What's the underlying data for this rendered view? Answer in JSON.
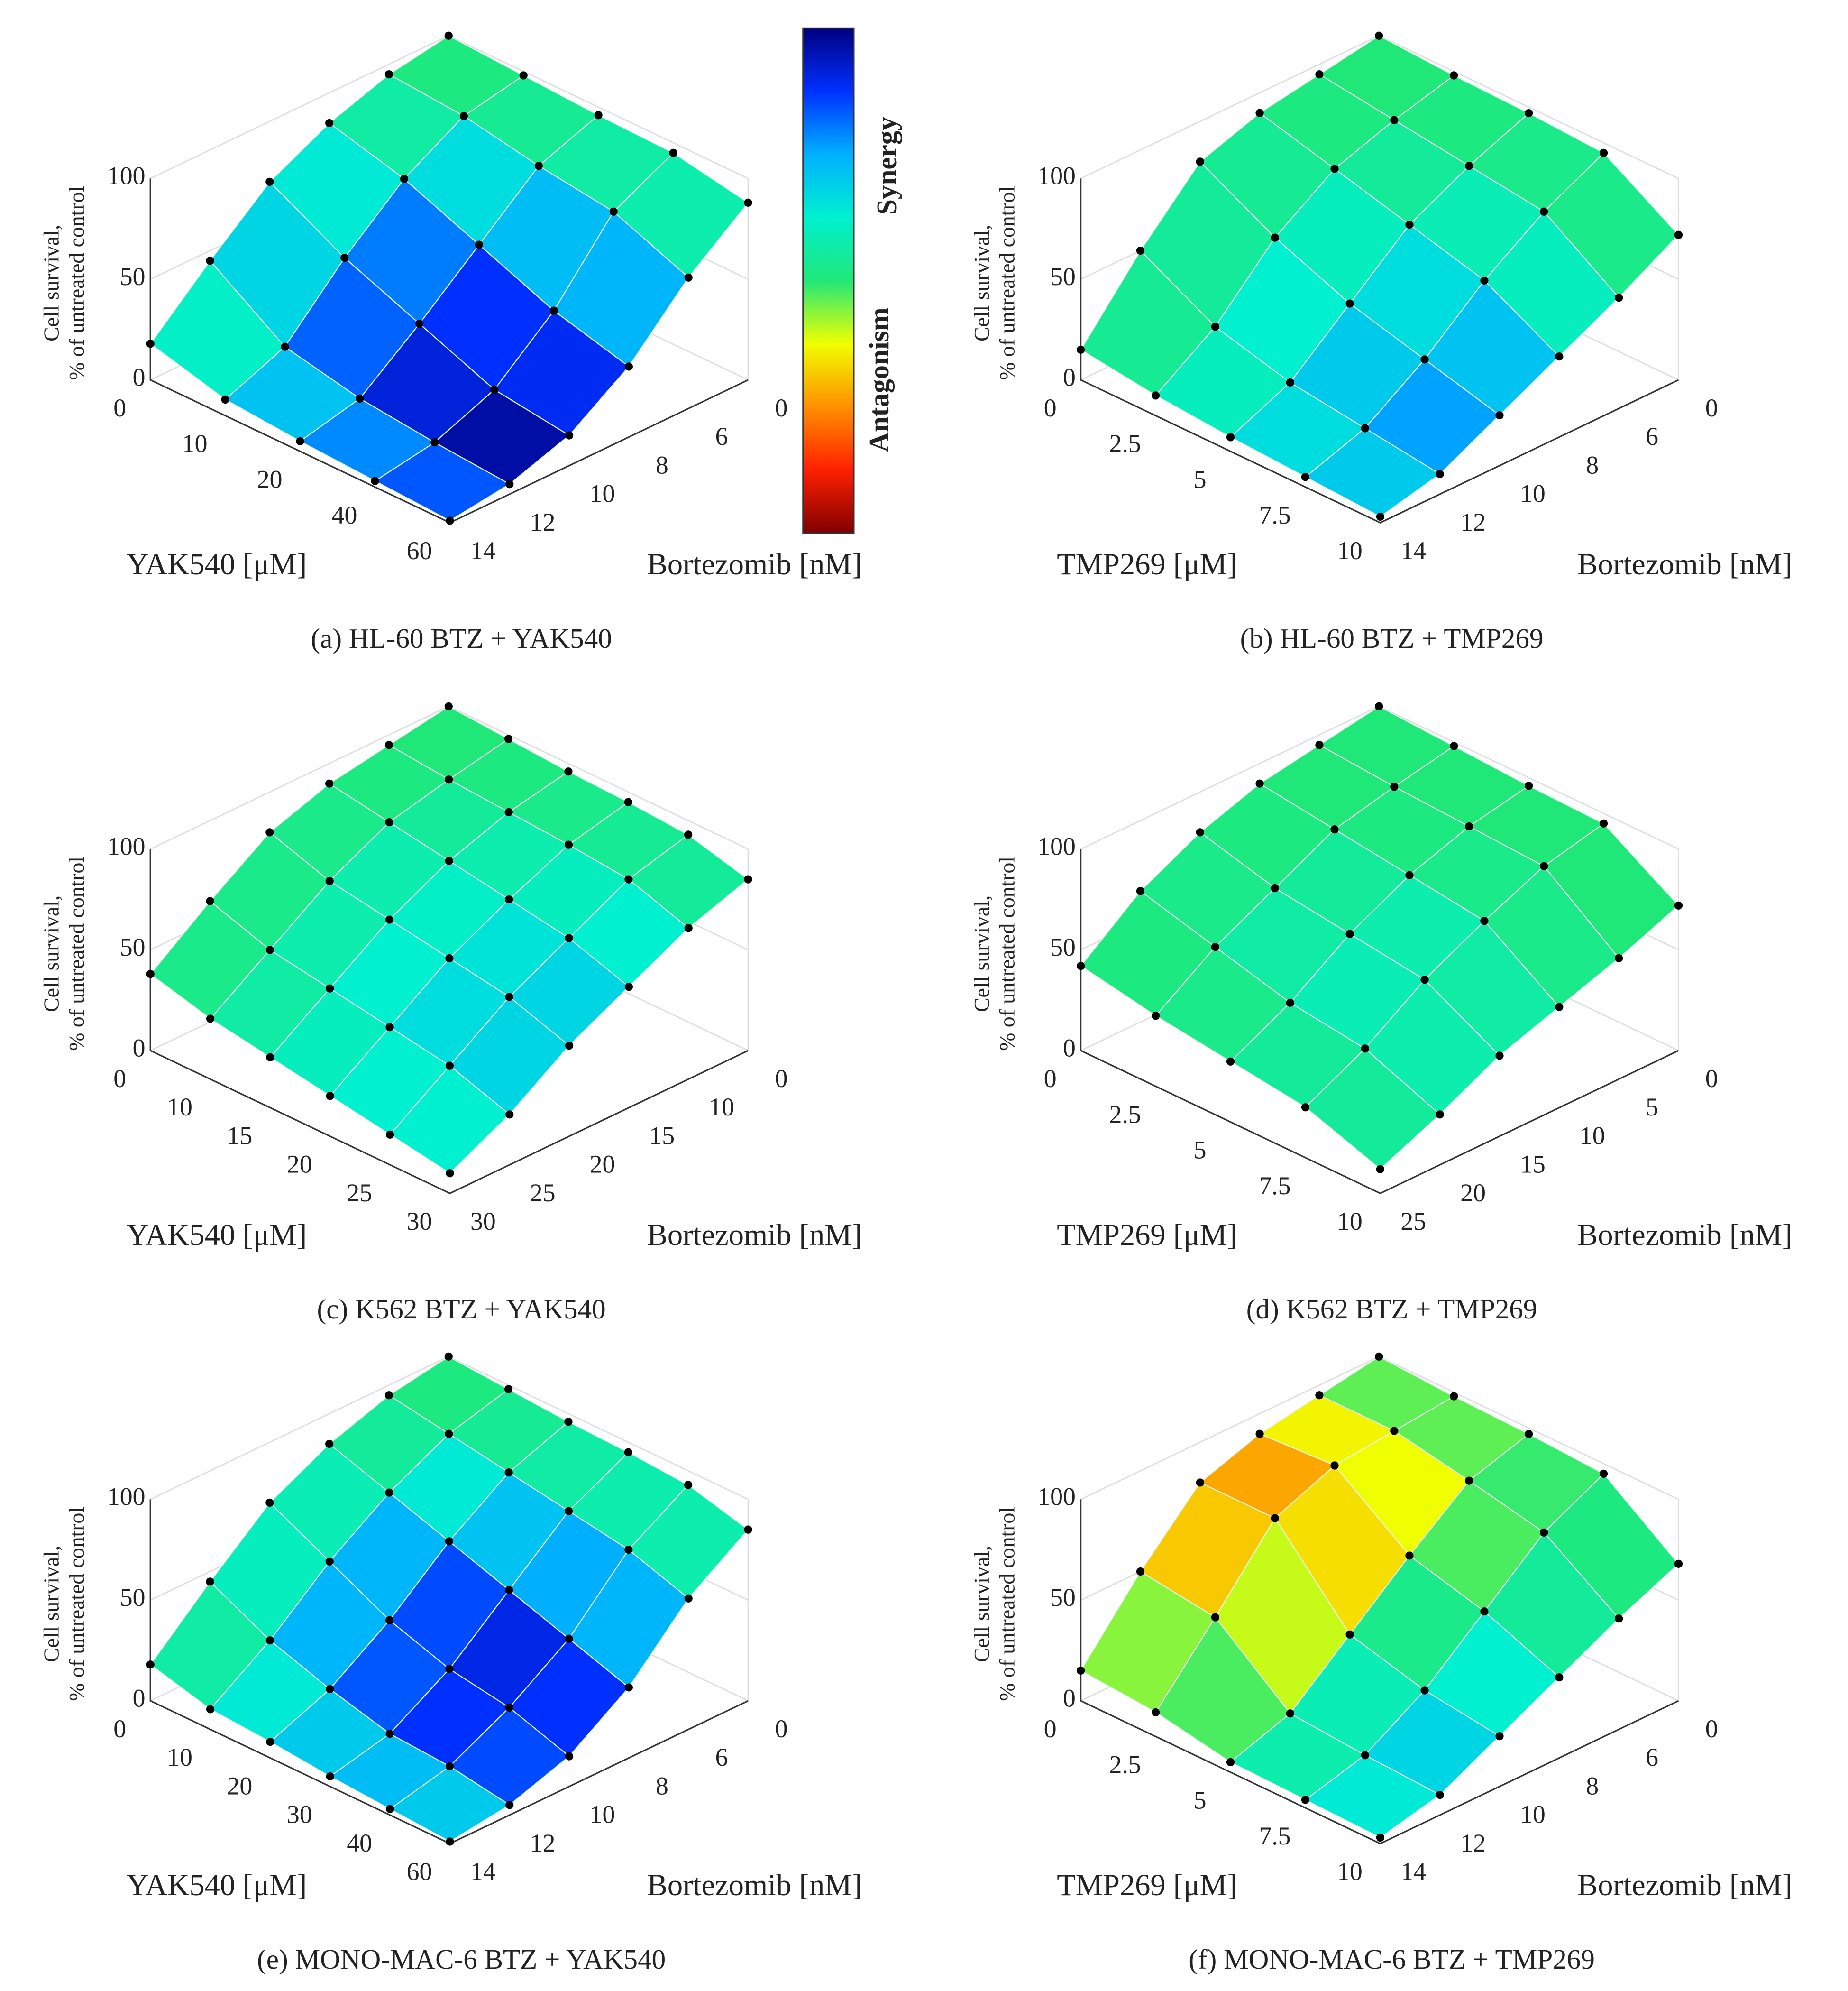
{
  "chart_data": [
    {
      "type": "surface3d",
      "caption": "(a) HL-60 BTZ + YAK540",
      "xlabel": "YAK540 [μM]",
      "ylabel": "Bortezomib [nM]",
      "zlabel": [
        "Cell survival,",
        "% of untreated control"
      ],
      "x_categories": [
        0,
        10,
        20,
        40,
        60
      ],
      "y_categories": [
        0,
        6,
        8,
        10,
        12,
        14
      ],
      "zlim": [
        0,
        100
      ],
      "zticks": [
        0,
        50,
        100
      ],
      "values": [
        [
          100,
          95,
          85,
          70,
          45,
          18
        ],
        [
          98,
          92,
          75,
          50,
          20,
          8
        ],
        [
          96,
          85,
          60,
          35,
          12,
          5
        ],
        [
          95,
          80,
          45,
          20,
          8,
          3
        ],
        [
          88,
          65,
          35,
          15,
          5,
          1
        ]
      ],
      "synergy": [
        [
          0,
          0,
          0,
          0.1,
          0.2,
          0
        ],
        [
          0,
          0.1,
          0.4,
          0.6,
          0.5,
          0.2
        ],
        [
          0,
          0.2,
          0.6,
          0.8,
          0.7,
          0.3
        ],
        [
          0,
          0.3,
          0.7,
          0.9,
          0.9,
          0.4
        ],
        [
          0,
          0.3,
          0.6,
          0.9,
          1,
          0.4
        ]
      ]
    },
    {
      "type": "surface3d",
      "caption": "(b) HL-60 BTZ + TMP269",
      "xlabel": "TMP269 [μM]",
      "ylabel": "Bortezomib [nM]",
      "zlabel": [
        "Cell survival,",
        "% of untreated control"
      ],
      "x_categories": [
        0,
        2.5,
        5,
        7.5,
        10
      ],
      "y_categories": [
        0,
        6,
        8,
        10,
        12,
        14
      ],
      "zlim": [
        0,
        100
      ],
      "zticks": [
        0,
        50,
        100
      ],
      "values": [
        [
          100,
          95,
          90,
          80,
          50,
          15
        ],
        [
          98,
          90,
          80,
          60,
          30,
          10
        ],
        [
          97,
          85,
          70,
          45,
          20,
          7
        ],
        [
          95,
          80,
          60,
          35,
          15,
          5
        ],
        [
          72,
          55,
          40,
          25,
          10,
          3
        ]
      ],
      "synergy": [
        [
          0,
          0,
          0,
          0,
          0,
          0
        ],
        [
          0,
          0,
          0.1,
          0.2,
          0.2,
          0.1
        ],
        [
          0,
          0.1,
          0.2,
          0.3,
          0.3,
          0.2
        ],
        [
          0,
          0.1,
          0.3,
          0.5,
          0.5,
          0.3
        ],
        [
          0,
          0.1,
          0.3,
          0.6,
          0.5,
          0.3
        ]
      ]
    },
    {
      "type": "surface3d",
      "caption": "(c) K562 BTZ + YAK540",
      "xlabel": "YAK540 [μM]",
      "ylabel": "Bortezomib [nM]",
      "zlabel": [
        "Cell survival,",
        "% of untreated control"
      ],
      "x_categories": [
        0,
        10,
        15,
        20,
        25,
        30
      ],
      "y_categories": [
        0,
        10,
        15,
        20,
        25,
        30
      ],
      "zlim": [
        0,
        100
      ],
      "zticks": [
        0,
        50,
        100
      ],
      "values": [
        [
          100,
          95,
          90,
          80,
          60,
          38
        ],
        [
          98,
          92,
          85,
          70,
          50,
          30
        ],
        [
          96,
          90,
          80,
          65,
          45,
          25
        ],
        [
          95,
          88,
          75,
          60,
          40,
          20
        ],
        [
          93,
          85,
          70,
          55,
          35,
          15
        ],
        [
          85,
          75,
          60,
          45,
          25,
          10
        ]
      ],
      "synergy": [
        [
          0,
          0,
          0,
          0,
          0,
          0
        ],
        [
          0,
          0,
          0.1,
          0.1,
          0.1,
          0.1
        ],
        [
          0,
          0.1,
          0.2,
          0.2,
          0.2,
          0.1
        ],
        [
          0,
          0.1,
          0.2,
          0.3,
          0.3,
          0.2
        ],
        [
          0,
          0.2,
          0.3,
          0.4,
          0.3,
          0.2
        ],
        [
          0,
          0.2,
          0.3,
          0.4,
          0.3,
          0.2
        ]
      ]
    },
    {
      "type": "surface3d",
      "caption": "(d) K562 BTZ + TMP269",
      "xlabel": "TMP269 [μM]",
      "ylabel": "Bortezomib [nM]",
      "zlabel": [
        "Cell survival,",
        "% of untreated control"
      ],
      "x_categories": [
        0,
        2.5,
        5,
        7.5,
        10
      ],
      "y_categories": [
        0,
        5,
        10,
        15,
        20,
        25
      ],
      "zlim": [
        0,
        100
      ],
      "zticks": [
        0,
        50,
        100
      ],
      "values": [
        [
          100,
          95,
          90,
          80,
          65,
          42
        ],
        [
          98,
          92,
          85,
          70,
          55,
          35
        ],
        [
          96,
          90,
          80,
          65,
          45,
          30
        ],
        [
          95,
          88,
          75,
          60,
          40,
          25
        ],
        [
          72,
          60,
          50,
          40,
          25,
          12
        ]
      ],
      "synergy": [
        [
          0,
          0,
          0,
          0,
          0,
          0
        ],
        [
          0,
          0,
          0,
          0.1,
          0.1,
          0
        ],
        [
          0,
          0,
          0.1,
          0.2,
          0.1,
          0
        ],
        [
          0,
          0,
          0.1,
          0.2,
          0.2,
          0.1
        ],
        [
          0,
          0,
          0.1,
          0.1,
          0.1,
          0
        ]
      ]
    },
    {
      "type": "surface3d",
      "caption": "(e) MONO-MAC-6 BTZ + YAK540",
      "xlabel": "YAK540 [μM]",
      "ylabel": "Bortezomib [nM]",
      "zlabel": [
        "Cell survival,",
        "% of untreated control"
      ],
      "x_categories": [
        0,
        10,
        20,
        30,
        40,
        60
      ],
      "y_categories": [
        0,
        6,
        8,
        10,
        12,
        14
      ],
      "zlim": [
        0,
        100
      ],
      "zticks": [
        0,
        50,
        100
      ],
      "values": [
        [
          100,
          95,
          85,
          70,
          45,
          18
        ],
        [
          98,
          90,
          75,
          55,
          30,
          10
        ],
        [
          96,
          85,
          65,
          40,
          20,
          8
        ],
        [
          95,
          80,
          55,
          30,
          12,
          5
        ],
        [
          93,
          75,
          45,
          25,
          10,
          3
        ],
        [
          85,
          65,
          35,
          15,
          5,
          1
        ]
      ],
      "synergy": [
        [
          0,
          0,
          0,
          0,
          0.1,
          0
        ],
        [
          0,
          0.1,
          0.3,
          0.4,
          0.3,
          0.1
        ],
        [
          0,
          0.2,
          0.5,
          0.7,
          0.5,
          0.2
        ],
        [
          0,
          0.3,
          0.7,
          0.9,
          0.6,
          0.3
        ],
        [
          0,
          0.3,
          0.7,
          0.9,
          0.6,
          0.3
        ],
        [
          0,
          0.3,
          0.6,
          0.8,
          0.5,
          0.2
        ]
      ]
    },
    {
      "type": "surface3d",
      "caption": "(f) MONO-MAC-6 BTZ + TMP269",
      "xlabel": "TMP269 [μM]",
      "ylabel": "Bortezomib [nM]",
      "zlabel": [
        "Cell survival,",
        "% of untreated control"
      ],
      "x_categories": [
        0,
        2.5,
        5,
        7.5,
        10
      ],
      "y_categories": [
        0,
        6,
        8,
        10,
        12,
        14
      ],
      "zlim": [
        0,
        100
      ],
      "zticks": [
        0,
        50,
        100
      ],
      "values": [
        [
          100,
          95,
          90,
          80,
          50,
          15
        ],
        [
          98,
          95,
          92,
          80,
          45,
          12
        ],
        [
          97,
          88,
          65,
          40,
          15,
          5
        ],
        [
          95,
          80,
          55,
          30,
          12,
          4
        ],
        [
          68,
          55,
          40,
          25,
          10,
          3
        ]
      ],
      "synergy": [
        [
          0,
          -0.1,
          -0.3,
          -0.4,
          -0.2,
          0
        ],
        [
          0,
          -0.2,
          -0.5,
          -0.6,
          -0.3,
          0
        ],
        [
          0,
          -0.1,
          -0.2,
          0,
          0.1,
          0
        ],
        [
          0,
          0,
          0.1,
          0.3,
          0.3,
          0.2
        ],
        [
          0,
          0.1,
          0.2,
          0.4,
          0.4,
          0.2
        ]
      ]
    }
  ],
  "colorbar": {
    "top_label": "Synergy",
    "bottom_label": "Antagonism",
    "lim": [
      -1,
      1
    ],
    "colormap": [
      "#800000",
      "#ff2000",
      "#ff9000",
      "#f0ff00",
      "#20e878",
      "#00f0d0",
      "#00b0ff",
      "#0030ff",
      "#000080"
    ]
  }
}
